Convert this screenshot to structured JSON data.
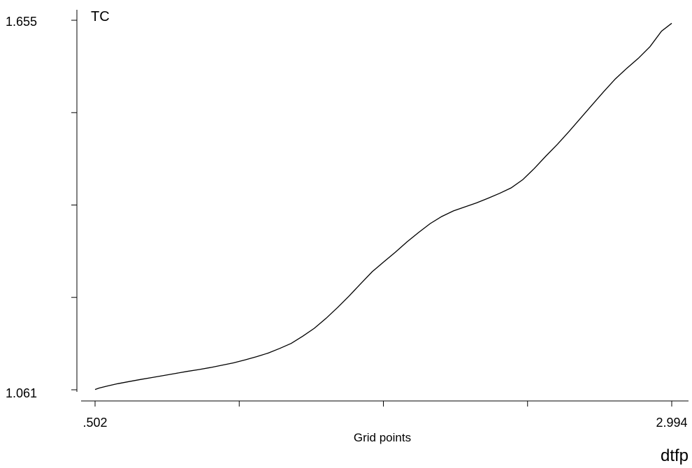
{
  "chart_data": {
    "type": "line",
    "title": "",
    "ylabel": "TC",
    "xlabel": "Grid points",
    "xvar_label": "dtfp",
    "xlim": [
      0.502,
      2.994
    ],
    "ylim": [
      1.061,
      1.655
    ],
    "x_tick_labels": [
      ".502",
      "",
      "",
      "",
      "2.994"
    ],
    "y_tick_labels": [
      "1.655",
      "",
      "",
      "",
      "1.061"
    ],
    "grid": false,
    "series": [
      {
        "x": [
          0.502,
          0.52,
          0.56,
          0.6,
          0.65,
          0.7,
          0.75,
          0.8,
          0.85,
          0.9,
          0.95,
          1.0,
          1.05,
          1.1,
          1.15,
          1.2,
          1.25,
          1.3,
          1.35,
          1.4,
          1.45,
          1.5,
          1.55,
          1.6,
          1.65,
          1.7,
          1.75,
          1.8,
          1.85,
          1.9,
          1.95,
          2.0,
          2.05,
          2.1,
          2.15,
          2.2,
          2.25,
          2.3,
          2.35,
          2.4,
          2.45,
          2.5,
          2.55,
          2.6,
          2.65,
          2.7,
          2.75,
          2.8,
          2.85,
          2.9,
          2.95,
          2.994
        ],
        "y": [
          1.0615,
          1.0638,
          1.0675,
          1.0708,
          1.0743,
          1.0776,
          1.0808,
          1.084,
          1.0873,
          1.0905,
          1.0935,
          1.0967,
          1.1004,
          1.1042,
          1.109,
          1.1142,
          1.12,
          1.1275,
          1.1356,
          1.1472,
          1.1599,
          1.1758,
          1.1933,
          1.2118,
          1.2316,
          1.2509,
          1.2667,
          1.2822,
          1.2987,
          1.3138,
          1.3281,
          1.3395,
          1.3485,
          1.355,
          1.3614,
          1.3688,
          1.3768,
          1.3855,
          1.3986,
          1.4167,
          1.4366,
          1.4556,
          1.4761,
          1.4976,
          1.5189,
          1.5402,
          1.5606,
          1.5779,
          1.5939,
          1.6126,
          1.6375,
          1.6502
        ]
      }
    ]
  }
}
